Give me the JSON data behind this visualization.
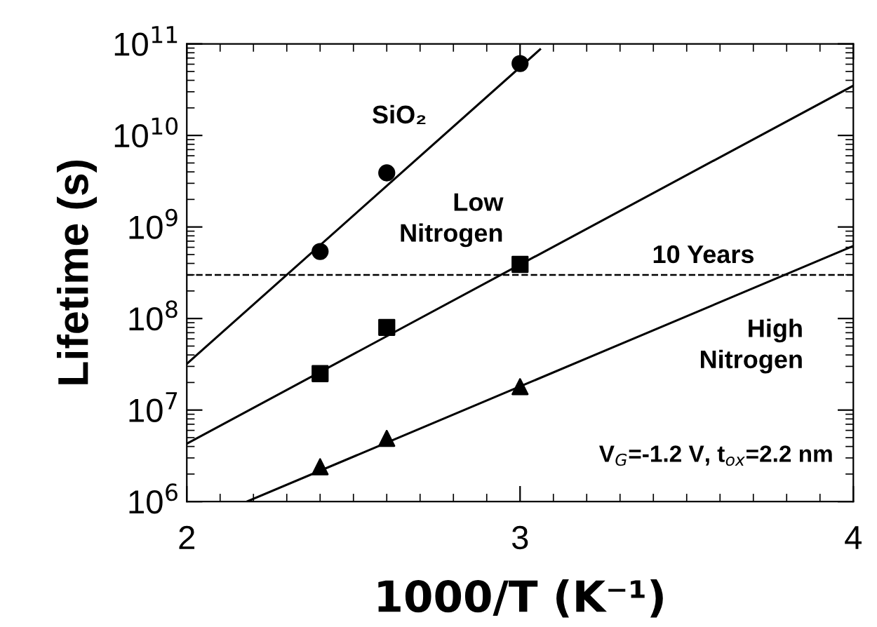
{
  "chart_data": {
    "type": "scatter",
    "xlabel": "1000/T (K⁻¹)",
    "ylabel": "Lifetime (s)",
    "log": "y",
    "grid": false,
    "xlim": [
      2,
      4
    ],
    "xticks": [
      2,
      3,
      4
    ],
    "ylim": [
      1000000.0,
      100000000000.0
    ],
    "yticks": [
      {
        "value": 1000000.0,
        "label": "10$^{6}$"
      },
      {
        "value": 10000000.0,
        "label": "10$^{7}$"
      },
      {
        "value": 100000000.0,
        "label": "10$^{8}$"
      },
      {
        "value": 1000000000.0,
        "label": "10$^{9}$"
      },
      {
        "value": 10000000000.0,
        "label": "10$^{10}$"
      },
      {
        "value": 100000000000.0,
        "label": "10$^{11}$"
      }
    ],
    "x": [
      2.4,
      2.6,
      3.0
    ],
    "series": [
      {
        "name": "SiO₂",
        "marker": "circle",
        "color": "#000000",
        "values": [
          540000000.0,
          3900000000.0,
          61000000000.0
        ]
      },
      {
        "name": "Low\nNitrogen",
        "marker": "square",
        "color": "#000000",
        "values": [
          25000000.0,
          80000000.0,
          390000000.0
        ]
      },
      {
        "name": "High\nNitrogen",
        "marker": "triangle",
        "color": "#000000",
        "values": [
          2400000.0,
          4900000.0,
          18000000.0
        ]
      },
      {
        "type": "line",
        "color": "#000000",
        "line_style": "solid",
        "x": [
          2,
          3.06
        ],
        "values": [
          32000000.0,
          87000000000.0
        ]
      },
      {
        "type": "line",
        "color": "#000000",
        "line_style": "solid",
        "x": [
          2,
          4
        ],
        "values": [
          4300000.0,
          35000000000.0
        ]
      },
      {
        "type": "line",
        "color": "#000000",
        "line_style": "solid",
        "x": [
          2.18,
          4
        ],
        "values": [
          1000000.0,
          620000000.0
        ]
      }
    ],
    "ref_lines": [
      {
        "axis": "y",
        "value": 300000000.0,
        "label": "10 Years",
        "line_style": "dashed",
        "color": "#000000"
      }
    ],
    "annotations": [
      "V$_{G}$=-1.2 V, t$_{ox}$=2.2 nm"
    ]
  }
}
